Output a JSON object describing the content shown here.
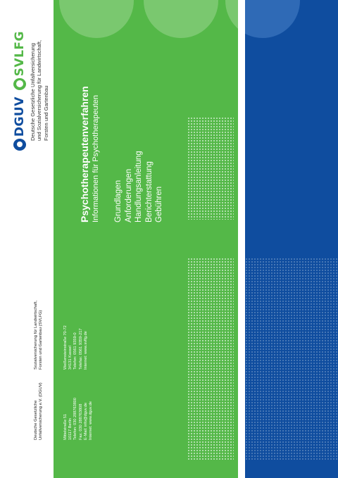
{
  "logo": {
    "dguv": "DGUV",
    "svlfg": "SVLFG"
  },
  "org_lines": [
    "Deutsche Gesetzliche Unfallversicherung",
    "und Sozialversicherung für Landwirtschaft,",
    "Forsten und Gartenbau"
  ],
  "title": "Psychotherapeutenverfahren",
  "subtitle": "Informationen für Psychotherapeuten",
  "topics": [
    "Grundlagen",
    "Anforderungen",
    "Handlungsanleitung",
    "Berichterstattung",
    "Gebühren"
  ],
  "dguv_address": {
    "name_lines": [
      "Deutsche Gesetzliche",
      "Unfallversicherung e.V. (DGUV)"
    ],
    "lines": [
      "Mittelstraße 51",
      "10117 Berlin",
      "Telefon: 030 288763800",
      "Fax: 030 288763808",
      "E-Mail: info@dguv.de",
      "Internet: www.dguv.de"
    ]
  },
  "svlfg_address": {
    "name_lines": [
      "Sozialversicherung für Landwirtschaft,",
      "Forsten und Gartenbau (SVLFG)"
    ],
    "lines": [
      "Weißensteinstraße 70-72",
      "34131 Kassel",
      "Telefon: 0561 9359-0",
      "Telefax: 0561 9359-217",
      "Internet: www.svlfg.de"
    ]
  },
  "colors": {
    "green": "#54b848",
    "blue": "#0f4d9f",
    "light_green_circle": "#7ac86f",
    "light_blue_circle": "#2f6ab6"
  }
}
